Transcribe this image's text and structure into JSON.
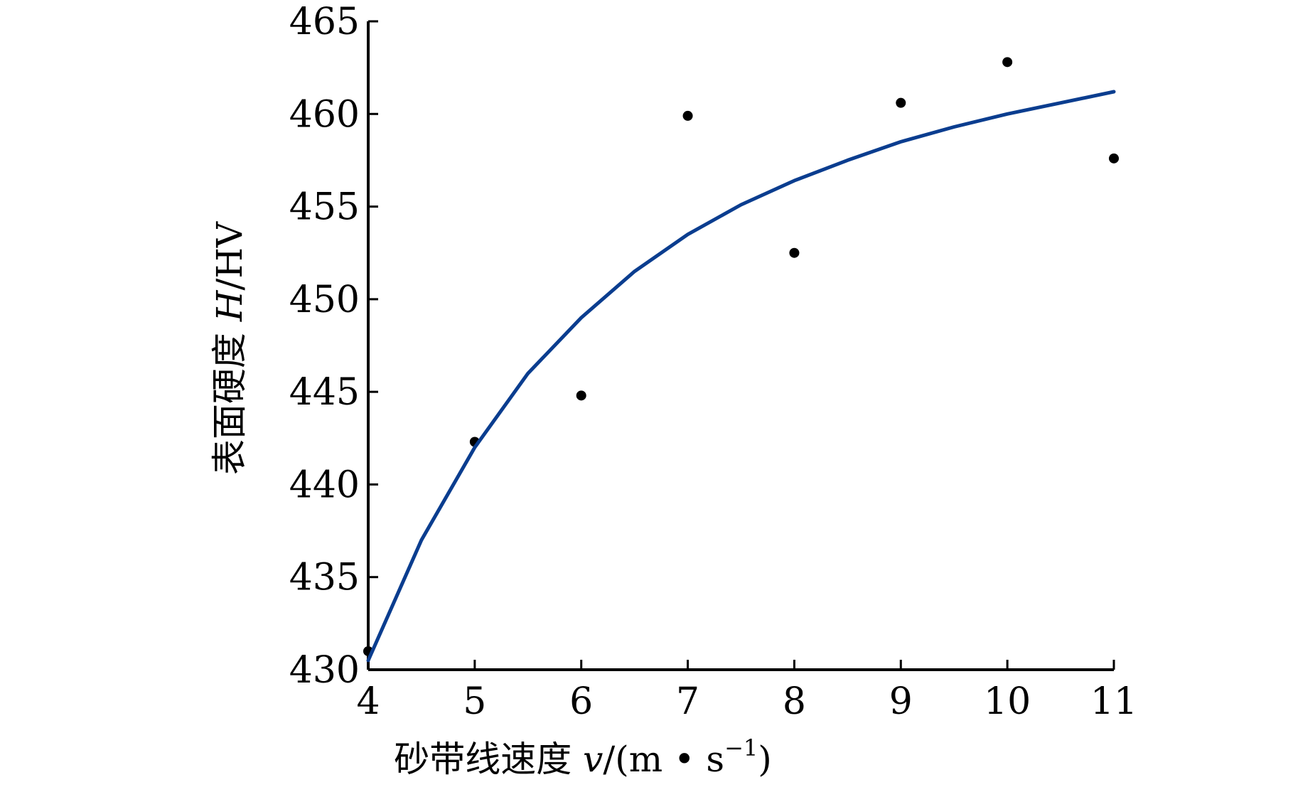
{
  "chart_data": {
    "type": "scatter",
    "title": "",
    "xlabel": "砂带线速度 v/(m · s⁻¹)",
    "xlabel_parts": {
      "main": "砂带线速度 ",
      "var": "v",
      "unit_open": "/(m • s",
      "sup": "−1",
      "unit_close": ")"
    },
    "ylabel": "表面硬度 H/HV",
    "ylabel_parts": {
      "main": "表面硬度 ",
      "var": "H",
      "unit": "/HV"
    },
    "xlim": [
      4,
      11
    ],
    "ylim": [
      430,
      465
    ],
    "xticks": [
      4,
      5,
      6,
      7,
      8,
      9,
      10,
      11
    ],
    "yticks": [
      430,
      435,
      440,
      445,
      450,
      455,
      460,
      465
    ],
    "grid": false,
    "series": [
      {
        "kind": "points",
        "color": "#000000",
        "x": [
          4,
          5,
          6,
          7,
          8,
          9,
          10,
          11
        ],
        "y": [
          431.0,
          442.3,
          444.8,
          459.9,
          452.5,
          460.6,
          462.8,
          457.6
        ]
      },
      {
        "kind": "fit-curve",
        "color": "#0a3d8f",
        "x": [
          4,
          4.5,
          5,
          5.5,
          6,
          6.5,
          7,
          7.5,
          8,
          8.5,
          9,
          9.5,
          10,
          10.5,
          11
        ],
        "y": [
          430.5,
          437.0,
          442.0,
          446.0,
          449.0,
          451.5,
          453.5,
          455.1,
          456.4,
          457.5,
          458.5,
          459.3,
          460.0,
          460.6,
          461.2
        ]
      }
    ]
  }
}
